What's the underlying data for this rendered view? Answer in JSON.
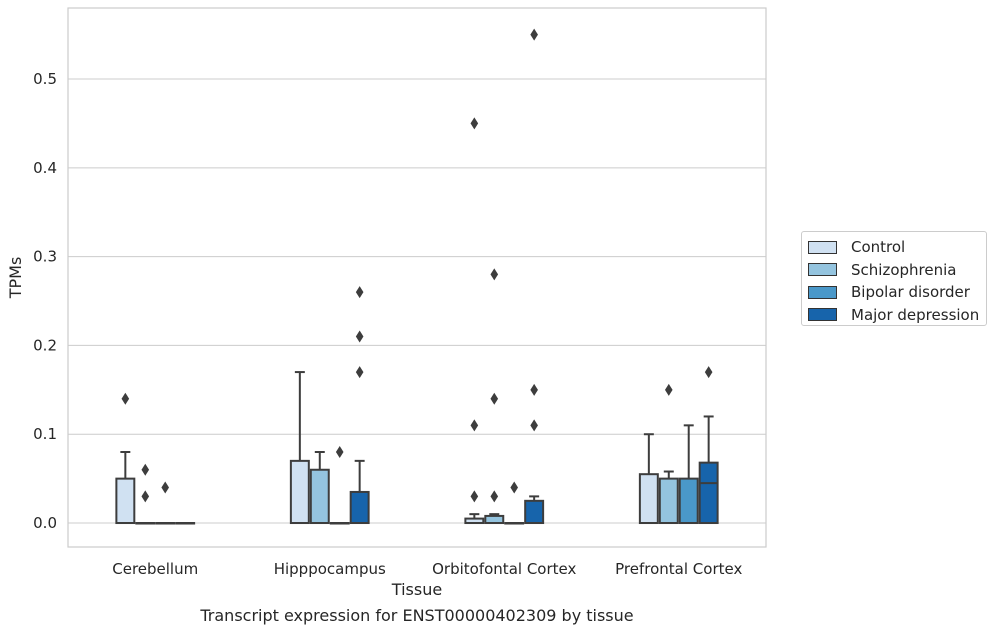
{
  "chart_data": {
    "type": "box",
    "categories": [
      "Cerebellum",
      "Hipppocampus",
      "Orbitofontal Cortex",
      "Prefrontal Cortex"
    ],
    "xlabel": "Tissue",
    "ylabel": "TPMs",
    "ylim": [
      -0.027,
      0.58
    ],
    "yticks": [
      0.0,
      0.1,
      0.2,
      0.3,
      0.4,
      0.5
    ],
    "grid": true,
    "legend_position": "right",
    "series": [
      {
        "name": "Control",
        "color": "#d0e1f2",
        "boxes": [
          {
            "q1": 0,
            "median": 0,
            "q3": 0.05,
            "whisker_low": 0,
            "whisker_high": 0.08,
            "outliers": [
              0.14
            ]
          },
          {
            "q1": 0,
            "median": 0,
            "q3": 0.07,
            "whisker_low": 0,
            "whisker_high": 0.17,
            "outliers": []
          },
          {
            "q1": 0,
            "median": 0,
            "q3": 0.005,
            "whisker_low": 0,
            "whisker_high": 0.01,
            "outliers": [
              0.03,
              0.11,
              0.45
            ]
          },
          {
            "q1": 0,
            "median": 0,
            "q3": 0.055,
            "whisker_low": 0,
            "whisker_high": 0.1,
            "outliers": []
          }
        ]
      },
      {
        "name": "Schizophrenia",
        "color": "#94c4df",
        "boxes": [
          {
            "q1": 0,
            "median": 0,
            "q3": 0,
            "whisker_low": 0,
            "whisker_high": 0,
            "outliers": [
              0.03,
              0.06
            ]
          },
          {
            "q1": 0,
            "median": 0,
            "q3": 0.06,
            "whisker_low": 0,
            "whisker_high": 0.08,
            "outliers": []
          },
          {
            "q1": 0,
            "median": 0,
            "q3": 0.008,
            "whisker_low": 0,
            "whisker_high": 0.01,
            "outliers": [
              0.03,
              0.14,
              0.28
            ]
          },
          {
            "q1": 0,
            "median": 0,
            "q3": 0.05,
            "whisker_low": 0,
            "whisker_high": 0.058,
            "outliers": [
              0.15
            ]
          }
        ]
      },
      {
        "name": "Bipolar disorder",
        "color": "#4a98c9",
        "boxes": [
          {
            "q1": 0,
            "median": 0,
            "q3": 0,
            "whisker_low": 0,
            "whisker_high": 0,
            "outliers": [
              0.04
            ]
          },
          {
            "q1": 0,
            "median": 0,
            "q3": 0,
            "whisker_low": 0,
            "whisker_high": 0,
            "outliers": [
              0.08
            ]
          },
          {
            "q1": 0,
            "median": 0,
            "q3": 0,
            "whisker_low": 0,
            "whisker_high": 0,
            "outliers": [
              0.04
            ]
          },
          {
            "q1": 0,
            "median": 0,
            "q3": 0.05,
            "whisker_low": 0,
            "whisker_high": 0.11,
            "outliers": []
          }
        ]
      },
      {
        "name": "Major depression",
        "color": "#1764ab",
        "boxes": [
          {
            "q1": 0,
            "median": 0,
            "q3": 0,
            "whisker_low": 0,
            "whisker_high": 0,
            "outliers": []
          },
          {
            "q1": 0,
            "median": 0,
            "q3": 0.035,
            "whisker_low": 0,
            "whisker_high": 0.07,
            "outliers": [
              0.17,
              0.21,
              0.26
            ]
          },
          {
            "q1": 0,
            "median": 0,
            "q3": 0.025,
            "whisker_low": 0,
            "whisker_high": 0.03,
            "outliers": [
              0.11,
              0.15,
              0.55
            ]
          },
          {
            "q1": 0,
            "median": 0.045,
            "q3": 0.068,
            "whisker_low": 0,
            "whisker_high": 0.12,
            "outliers": [
              0.17
            ]
          }
        ]
      }
    ]
  },
  "caption": "Transcript expression for ENST00000402309 by tissue"
}
